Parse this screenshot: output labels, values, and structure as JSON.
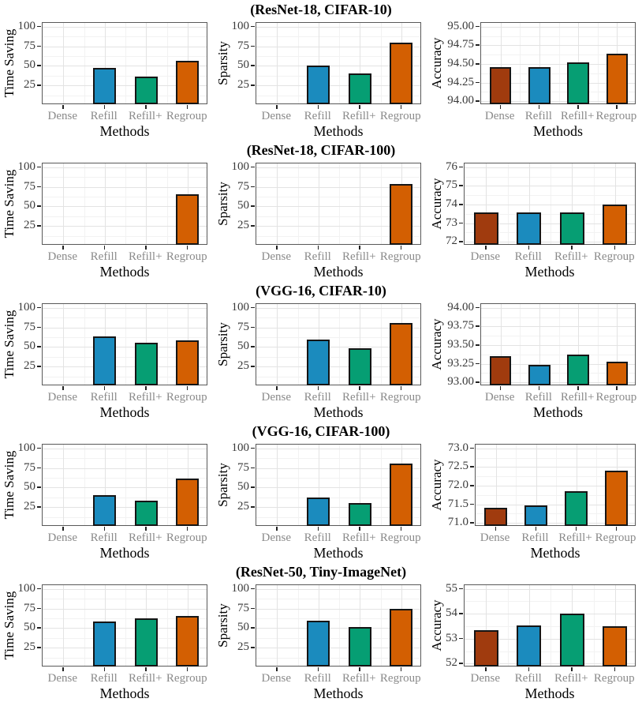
{
  "figure": {
    "xlabel": "Methods",
    "methods": [
      "Dense",
      "Refill",
      "Refill+",
      "Regroup"
    ],
    "method_colors": {
      "Dense": "#a03b0e",
      "Refill": "#1b8bbe",
      "Refill+": "#069e73",
      "Regroup": "#d35f02"
    },
    "bar_outline_color": "#151515",
    "grid_major_color": "#e3e3e3",
    "grid_minor_color": "#f2f2f2",
    "panel_border_color": "#595959",
    "ytick_label_color": "#3a3a3a",
    "xtick_label_color": "#8a8a8a"
  },
  "chart_data": [
    {
      "title": "(ResNet-18, CIFAR-10)",
      "charts": [
        {
          "type": "bar",
          "ylabel": "Time Saving",
          "categories": [
            "Dense",
            "Refill",
            "Refill+",
            "Regroup"
          ],
          "values": [
            0,
            46,
            35,
            56
          ],
          "yticks": [
            "25",
            "50",
            "75",
            "100"
          ],
          "ytick_values": [
            25,
            50,
            75,
            100
          ],
          "ylim": [
            0,
            105
          ]
        },
        {
          "type": "bar",
          "ylabel": "Sparsity",
          "categories": [
            "Dense",
            "Refill",
            "Refill+",
            "Regroup"
          ],
          "values": [
            0,
            49,
            39,
            79
          ],
          "yticks": [
            "25",
            "50",
            "75",
            "100"
          ],
          "ytick_values": [
            25,
            50,
            75,
            100
          ],
          "ylim": [
            0,
            105
          ]
        },
        {
          "type": "bar",
          "ylabel": "Accuracy",
          "categories": [
            "Dense",
            "Refill",
            "Refill+",
            "Regroup"
          ],
          "values": [
            94.45,
            94.45,
            94.51,
            94.63
          ],
          "yticks": [
            "94.00",
            "94.25",
            "94.50",
            "94.75",
            "95.00"
          ],
          "ytick_values": [
            94.0,
            94.25,
            94.5,
            94.75,
            95.0
          ],
          "ylim": [
            93.95,
            95.05
          ]
        }
      ]
    },
    {
      "title": "(ResNet-18, CIFAR-100)",
      "charts": [
        {
          "type": "bar",
          "ylabel": "Time Saving",
          "categories": [
            "Dense",
            "Refill",
            "Refill+",
            "Regroup"
          ],
          "values": [
            0,
            0,
            0,
            65
          ],
          "yticks": [
            "25",
            "50",
            "75",
            "100"
          ],
          "ytick_values": [
            25,
            50,
            75,
            100
          ],
          "ylim": [
            0,
            105
          ]
        },
        {
          "type": "bar",
          "ylabel": "Sparsity",
          "categories": [
            "Dense",
            "Refill",
            "Refill+",
            "Regroup"
          ],
          "values": [
            0,
            0,
            0,
            78
          ],
          "yticks": [
            "25",
            "50",
            "75",
            "100"
          ],
          "ytick_values": [
            25,
            50,
            75,
            100
          ],
          "ylim": [
            0,
            105
          ]
        },
        {
          "type": "bar",
          "ylabel": "Accuracy",
          "categories": [
            "Dense",
            "Refill",
            "Refill+",
            "Regroup"
          ],
          "values": [
            73.55,
            73.55,
            73.55,
            73.97
          ],
          "yticks": [
            "72",
            "73",
            "74",
            "75",
            "76"
          ],
          "ytick_values": [
            72,
            73,
            74,
            75,
            76
          ],
          "ylim": [
            71.8,
            76.2
          ]
        }
      ]
    },
    {
      "title": "(VGG-16, CIFAR-10)",
      "charts": [
        {
          "type": "bar",
          "ylabel": "Time Saving",
          "categories": [
            "Dense",
            "Refill",
            "Refill+",
            "Regroup"
          ],
          "values": [
            0,
            63,
            55,
            58
          ],
          "yticks": [
            "25",
            "50",
            "75",
            "100"
          ],
          "ytick_values": [
            25,
            50,
            75,
            100
          ],
          "ylim": [
            0,
            105
          ]
        },
        {
          "type": "bar",
          "ylabel": "Sparsity",
          "categories": [
            "Dense",
            "Refill",
            "Refill+",
            "Regroup"
          ],
          "values": [
            0,
            59,
            47,
            80
          ],
          "yticks": [
            "25",
            "50",
            "75",
            "100"
          ],
          "ytick_values": [
            25,
            50,
            75,
            100
          ],
          "ylim": [
            0,
            105
          ]
        },
        {
          "type": "bar",
          "ylabel": "Accuracy",
          "categories": [
            "Dense",
            "Refill",
            "Refill+",
            "Regroup"
          ],
          "values": [
            93.34,
            93.23,
            93.36,
            93.27
          ],
          "yticks": [
            "93.00",
            "93.25",
            "93.50",
            "93.75",
            "94.00"
          ],
          "ytick_values": [
            93.0,
            93.25,
            93.5,
            93.75,
            94.0
          ],
          "ylim": [
            92.95,
            94.05
          ]
        }
      ]
    },
    {
      "title": "(VGG-16, CIFAR-100)",
      "charts": [
        {
          "type": "bar",
          "ylabel": "Time Saving",
          "categories": [
            "Dense",
            "Refill",
            "Refill+",
            "Regroup"
          ],
          "values": [
            0,
            39,
            32,
            61
          ],
          "yticks": [
            "25",
            "50",
            "75",
            "100"
          ],
          "ytick_values": [
            25,
            50,
            75,
            100
          ],
          "ylim": [
            0,
            105
          ]
        },
        {
          "type": "bar",
          "ylabel": "Sparsity",
          "categories": [
            "Dense",
            "Refill",
            "Refill+",
            "Regroup"
          ],
          "values": [
            0,
            36,
            29,
            80
          ],
          "yticks": [
            "25",
            "50",
            "75",
            "100"
          ],
          "ytick_values": [
            25,
            50,
            75,
            100
          ],
          "ylim": [
            0,
            105
          ]
        },
        {
          "type": "bar",
          "ylabel": "Accuracy",
          "categories": [
            "Dense",
            "Refill",
            "Refill+",
            "Regroup"
          ],
          "values": [
            71.38,
            71.44,
            71.84,
            72.38
          ],
          "yticks": [
            "71.0",
            "71.5",
            "72.0",
            "72.5",
            "73.0"
          ],
          "ytick_values": [
            71.0,
            71.5,
            72.0,
            72.5,
            73.0
          ],
          "ylim": [
            70.9,
            73.1
          ]
        }
      ]
    },
    {
      "title": "(ResNet-50, Tiny-ImageNet)",
      "charts": [
        {
          "type": "bar",
          "ylabel": "Time Saving",
          "categories": [
            "Dense",
            "Refill",
            "Refill+",
            "Regroup"
          ],
          "values": [
            0,
            58,
            62,
            65
          ],
          "yticks": [
            "25",
            "50",
            "75",
            "100"
          ],
          "ytick_values": [
            25,
            50,
            75,
            100
          ],
          "ylim": [
            0,
            105
          ]
        },
        {
          "type": "bar",
          "ylabel": "Sparsity",
          "categories": [
            "Dense",
            "Refill",
            "Refill+",
            "Regroup"
          ],
          "values": [
            0,
            59,
            51,
            74
          ],
          "yticks": [
            "25",
            "50",
            "75",
            "100"
          ],
          "ytick_values": [
            25,
            50,
            75,
            100
          ],
          "ylim": [
            0,
            105
          ]
        },
        {
          "type": "bar",
          "ylabel": "Accuracy",
          "categories": [
            "Dense",
            "Refill",
            "Refill+",
            "Regroup"
          ],
          "values": [
            53.32,
            53.5,
            53.98,
            53.47
          ],
          "yticks": [
            "52",
            "53",
            "54",
            "55"
          ],
          "ytick_values": [
            52,
            53,
            54,
            55
          ],
          "ylim": [
            51.85,
            55.15
          ]
        }
      ]
    }
  ]
}
